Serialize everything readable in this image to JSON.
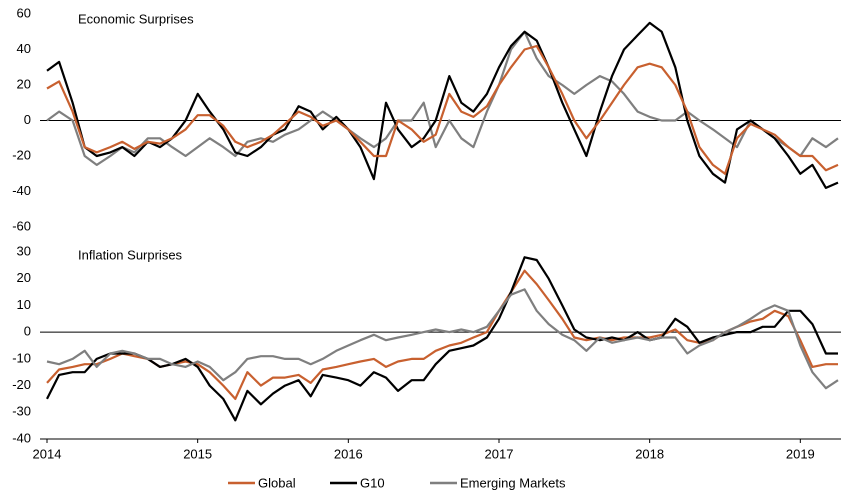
{
  "chart_data": [
    {
      "type": "line",
      "title": "Economic Surprises",
      "x": [
        2014,
        2014.08,
        2014.17,
        2014.25,
        2014.33,
        2014.42,
        2014.5,
        2014.58,
        2014.67,
        2014.75,
        2014.83,
        2014.92,
        2015,
        2015.08,
        2015.17,
        2015.25,
        2015.33,
        2015.42,
        2015.5,
        2015.58,
        2015.67,
        2015.75,
        2015.83,
        2015.92,
        2016,
        2016.08,
        2016.17,
        2016.25,
        2016.33,
        2016.42,
        2016.5,
        2016.58,
        2016.67,
        2016.75,
        2016.83,
        2016.92,
        2017,
        2017.08,
        2017.17,
        2017.25,
        2017.33,
        2017.42,
        2017.5,
        2017.58,
        2017.67,
        2017.75,
        2017.83,
        2017.92,
        2018,
        2018.08,
        2018.17,
        2018.25,
        2018.33,
        2018.42,
        2018.5,
        2018.58,
        2018.67,
        2018.75,
        2018.83,
        2018.92,
        2019,
        2019.08,
        2019.17,
        2019.25
      ],
      "series": [
        {
          "color": "#7f7f7f",
          "values": [
            0,
            5,
            0,
            -20,
            -25,
            -20,
            -15,
            -18,
            -10,
            -10,
            -15,
            -20,
            -15,
            -10,
            -15,
            -20,
            -12,
            -10,
            -12,
            -8,
            -5,
            0,
            5,
            0,
            -5,
            -10,
            -15,
            -10,
            0,
            0,
            10,
            -15,
            0,
            -10,
            -15,
            5,
            20,
            40,
            50,
            35,
            25,
            20,
            15,
            20,
            25,
            22,
            15,
            5,
            2,
            0,
            0,
            5,
            0,
            -5,
            -10,
            -15,
            0,
            -5,
            -10,
            -15,
            -20,
            -10,
            -15,
            -10
          ]
        },
        {
          "color": "#000000",
          "values": [
            28,
            33,
            10,
            -15,
            -20,
            -18,
            -15,
            -20,
            -12,
            -15,
            -10,
            0,
            15,
            5,
            -5,
            -18,
            -20,
            -15,
            -8,
            -5,
            8,
            5,
            -5,
            2,
            -5,
            -15,
            -33,
            10,
            -5,
            -15,
            -10,
            0,
            25,
            10,
            5,
            15,
            30,
            42,
            50,
            45,
            30,
            10,
            -5,
            -20,
            5,
            25,
            40,
            48,
            55,
            50,
            30,
            0,
            -20,
            -30,
            -35,
            -5,
            0,
            -5,
            -10,
            -20,
            -30,
            -25,
            -38,
            -35
          ]
        },
        {
          "color": "#c8602f",
          "values": [
            18,
            22,
            5,
            -15,
            -18,
            -15,
            -12,
            -16,
            -12,
            -13,
            -10,
            -5,
            3,
            3,
            -3,
            -12,
            -15,
            -12,
            -8,
            -2,
            5,
            2,
            -3,
            0,
            -5,
            -12,
            -20,
            -20,
            0,
            -5,
            -12,
            -8,
            15,
            5,
            2,
            8,
            20,
            30,
            40,
            42,
            30,
            15,
            0,
            -10,
            0,
            10,
            20,
            30,
            32,
            30,
            20,
            5,
            -15,
            -25,
            -30,
            -10,
            -2,
            -5,
            -8,
            -15,
            -20,
            -20,
            -28,
            -25
          ]
        }
      ],
      "xlim": [
        2014,
        2019.27
      ],
      "ylim": [
        -60,
        60
      ],
      "yticks": [
        -60,
        -40,
        -20,
        0,
        20,
        40,
        60
      ]
    },
    {
      "type": "line",
      "title": "Inflation Surprises",
      "x": [
        2014,
        2014.08,
        2014.17,
        2014.25,
        2014.33,
        2014.42,
        2014.5,
        2014.58,
        2014.67,
        2014.75,
        2014.83,
        2014.92,
        2015,
        2015.08,
        2015.17,
        2015.25,
        2015.33,
        2015.42,
        2015.5,
        2015.58,
        2015.67,
        2015.75,
        2015.83,
        2015.92,
        2016,
        2016.08,
        2016.17,
        2016.25,
        2016.33,
        2016.42,
        2016.5,
        2016.58,
        2016.67,
        2016.75,
        2016.83,
        2016.92,
        2017,
        2017.08,
        2017.17,
        2017.25,
        2017.33,
        2017.42,
        2017.5,
        2017.58,
        2017.67,
        2017.75,
        2017.83,
        2017.92,
        2018,
        2018.08,
        2018.17,
        2018.25,
        2018.33,
        2018.42,
        2018.5,
        2018.58,
        2018.67,
        2018.75,
        2018.83,
        2018.92,
        2019,
        2019.08,
        2019.17,
        2019.25
      ],
      "series": [
        {
          "name": "Global",
          "color": "#c8602f",
          "values": [
            -19,
            -14,
            -13,
            -12,
            -12,
            -10,
            -8,
            -9,
            -10,
            -13,
            -12,
            -11,
            -12,
            -15,
            -20,
            -25,
            -15,
            -20,
            -17,
            -17,
            -16,
            -19,
            -14,
            -13,
            -12,
            -11,
            -10,
            -13,
            -11,
            -10,
            -10,
            -7,
            -5,
            -4,
            -2,
            0,
            8,
            15,
            23,
            18,
            12,
            5,
            -2,
            -3,
            -2,
            -3,
            -2,
            -2,
            -2,
            -1,
            1,
            -3,
            -4,
            -3,
            0,
            2,
            4,
            5,
            8,
            6,
            -3,
            -13,
            -12,
            -12
          ]
        },
        {
          "name": "G10",
          "color": "#000000",
          "values": [
            -25,
            -16,
            -15,
            -15,
            -10,
            -8,
            -8,
            -8,
            -10,
            -13,
            -12,
            -10,
            -13,
            -20,
            -25,
            -33,
            -22,
            -27,
            -23,
            -20,
            -18,
            -24,
            -16,
            -17,
            -18,
            -20,
            -15,
            -17,
            -22,
            -18,
            -18,
            -12,
            -7,
            -6,
            -5,
            -2,
            5,
            15,
            28,
            27,
            20,
            10,
            1,
            -2,
            -3,
            -2,
            -3,
            0,
            -3,
            -2,
            5,
            2,
            -4,
            -2,
            -1,
            0,
            0,
            2,
            2,
            8,
            8,
            3,
            -8,
            -8
          ]
        },
        {
          "name": "Emerging Markets",
          "color": "#7f7f7f",
          "values": [
            -11,
            -12,
            -10,
            -7,
            -13,
            -8,
            -7,
            -8,
            -10,
            -10,
            -12,
            -13,
            -11,
            -13,
            -18,
            -15,
            -10,
            -9,
            -9,
            -10,
            -10,
            -12,
            -10,
            -7,
            -5,
            -3,
            -1,
            -3,
            -2,
            -1,
            0,
            1,
            0,
            1,
            0,
            2,
            8,
            14,
            16,
            8,
            3,
            -1,
            -3,
            -7,
            -2,
            -4,
            -3,
            -2,
            -3,
            -2,
            -2,
            -8,
            -5,
            -3,
            0,
            2,
            5,
            8,
            10,
            8,
            -5,
            -15,
            -21,
            -18
          ]
        }
      ],
      "xlim": [
        2014,
        2019.27
      ],
      "ylim": [
        -40,
        30
      ],
      "yticks": [
        -40,
        -30,
        -20,
        -10,
        0,
        10,
        20,
        30
      ],
      "xticks": [
        2014,
        2015,
        2016,
        2017,
        2018,
        2019
      ]
    }
  ]
}
